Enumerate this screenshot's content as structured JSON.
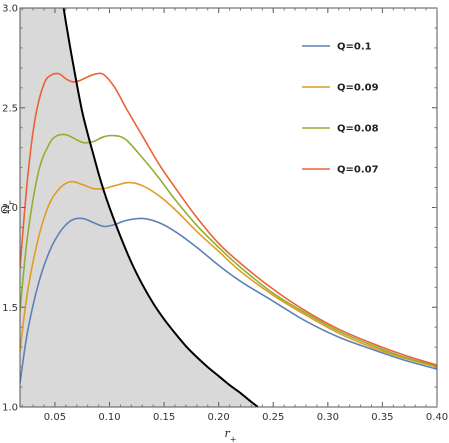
{
  "chart_data": {
    "type": "line",
    "title": "",
    "xlabel": "r",
    "xlabel_sub": "+",
    "ylabel": "Ω",
    "ylabel_sub": "r",
    "xlim": [
      0.018,
      0.4
    ],
    "ylim": [
      1.0,
      3.0
    ],
    "x_ticks": [
      0.05,
      0.1,
      0.15,
      0.2,
      0.25,
      0.3,
      0.35,
      0.4
    ],
    "x_tick_labels": [
      "0.05",
      "0.10",
      "0.15",
      "0.20",
      "0.25",
      "0.30",
      "0.35",
      "0.40"
    ],
    "y_ticks": [
      1.0,
      1.5,
      2.0,
      2.5,
      3.0
    ],
    "y_tick_labels": [
      "1.0",
      "1.5",
      "2.0",
      "2.5",
      "3.0"
    ],
    "grid": false,
    "legend_position": "top-right",
    "series": [
      {
        "name": "Q=0.1",
        "color": "#5e81b5",
        "x": [
          0.018,
          0.025,
          0.035,
          0.045,
          0.055,
          0.065,
          0.075,
          0.085,
          0.095,
          0.105,
          0.115,
          0.13,
          0.145,
          0.16,
          0.18,
          0.2,
          0.22,
          0.25,
          0.28,
          0.31,
          0.34,
          0.37,
          0.4
        ],
        "y": [
          1.12,
          1.38,
          1.62,
          1.78,
          1.88,
          1.935,
          1.945,
          1.925,
          1.905,
          1.915,
          1.935,
          1.945,
          1.925,
          1.88,
          1.8,
          1.71,
          1.63,
          1.53,
          1.43,
          1.35,
          1.29,
          1.235,
          1.19
        ]
      },
      {
        "name": "Q=0.09",
        "color": "#e19c24",
        "x": [
          0.018,
          0.025,
          0.035,
          0.045,
          0.055,
          0.065,
          0.075,
          0.085,
          0.095,
          0.105,
          0.118,
          0.13,
          0.145,
          0.16,
          0.18,
          0.2,
          0.22,
          0.25,
          0.28,
          0.31,
          0.34,
          0.37,
          0.4
        ],
        "y": [
          1.28,
          1.58,
          1.85,
          2.02,
          2.1,
          2.13,
          2.115,
          2.095,
          2.095,
          2.11,
          2.125,
          2.11,
          2.06,
          1.99,
          1.88,
          1.78,
          1.68,
          1.56,
          1.46,
          1.37,
          1.3,
          1.245,
          1.2
        ]
      },
      {
        "name": "Q=0.08",
        "color": "#8fb032",
        "x": [
          0.018,
          0.025,
          0.035,
          0.045,
          0.052,
          0.06,
          0.068,
          0.076,
          0.085,
          0.095,
          0.105,
          0.115,
          0.13,
          0.145,
          0.16,
          0.18,
          0.2,
          0.22,
          0.25,
          0.28,
          0.31,
          0.34,
          0.37,
          0.4
        ],
        "y": [
          1.48,
          1.86,
          2.18,
          2.32,
          2.36,
          2.365,
          2.345,
          2.325,
          2.33,
          2.355,
          2.36,
          2.34,
          2.25,
          2.15,
          2.04,
          1.91,
          1.8,
          1.7,
          1.57,
          1.47,
          1.38,
          1.31,
          1.25,
          1.205
        ]
      },
      {
        "name": "Q=0.07",
        "color": "#eb6235",
        "x": [
          0.018,
          0.025,
          0.032,
          0.04,
          0.047,
          0.054,
          0.06,
          0.066,
          0.072,
          0.08,
          0.088,
          0.095,
          0.105,
          0.115,
          0.13,
          0.145,
          0.16,
          0.18,
          0.2,
          0.22,
          0.25,
          0.28,
          0.31,
          0.34,
          0.37,
          0.4
        ],
        "y": [
          1.7,
          2.15,
          2.45,
          2.62,
          2.665,
          2.67,
          2.645,
          2.63,
          2.635,
          2.655,
          2.67,
          2.665,
          2.6,
          2.5,
          2.36,
          2.22,
          2.1,
          1.95,
          1.82,
          1.72,
          1.59,
          1.48,
          1.39,
          1.32,
          1.26,
          1.21
        ]
      },
      {
        "name": "",
        "color": "#000000",
        "shade_left": true,
        "x": [
          0.058,
          0.06,
          0.065,
          0.07,
          0.075,
          0.08,
          0.085,
          0.09,
          0.095,
          0.1,
          0.11,
          0.12,
          0.13,
          0.14,
          0.15,
          0.16,
          0.17,
          0.18,
          0.19,
          0.2,
          0.21,
          0.22,
          0.23,
          0.236
        ],
        "y": [
          3.0,
          2.93,
          2.77,
          2.62,
          2.48,
          2.37,
          2.27,
          2.17,
          2.08,
          2.0,
          1.855,
          1.725,
          1.615,
          1.52,
          1.44,
          1.37,
          1.305,
          1.25,
          1.2,
          1.155,
          1.11,
          1.07,
          1.025,
          1.0
        ]
      }
    ]
  }
}
